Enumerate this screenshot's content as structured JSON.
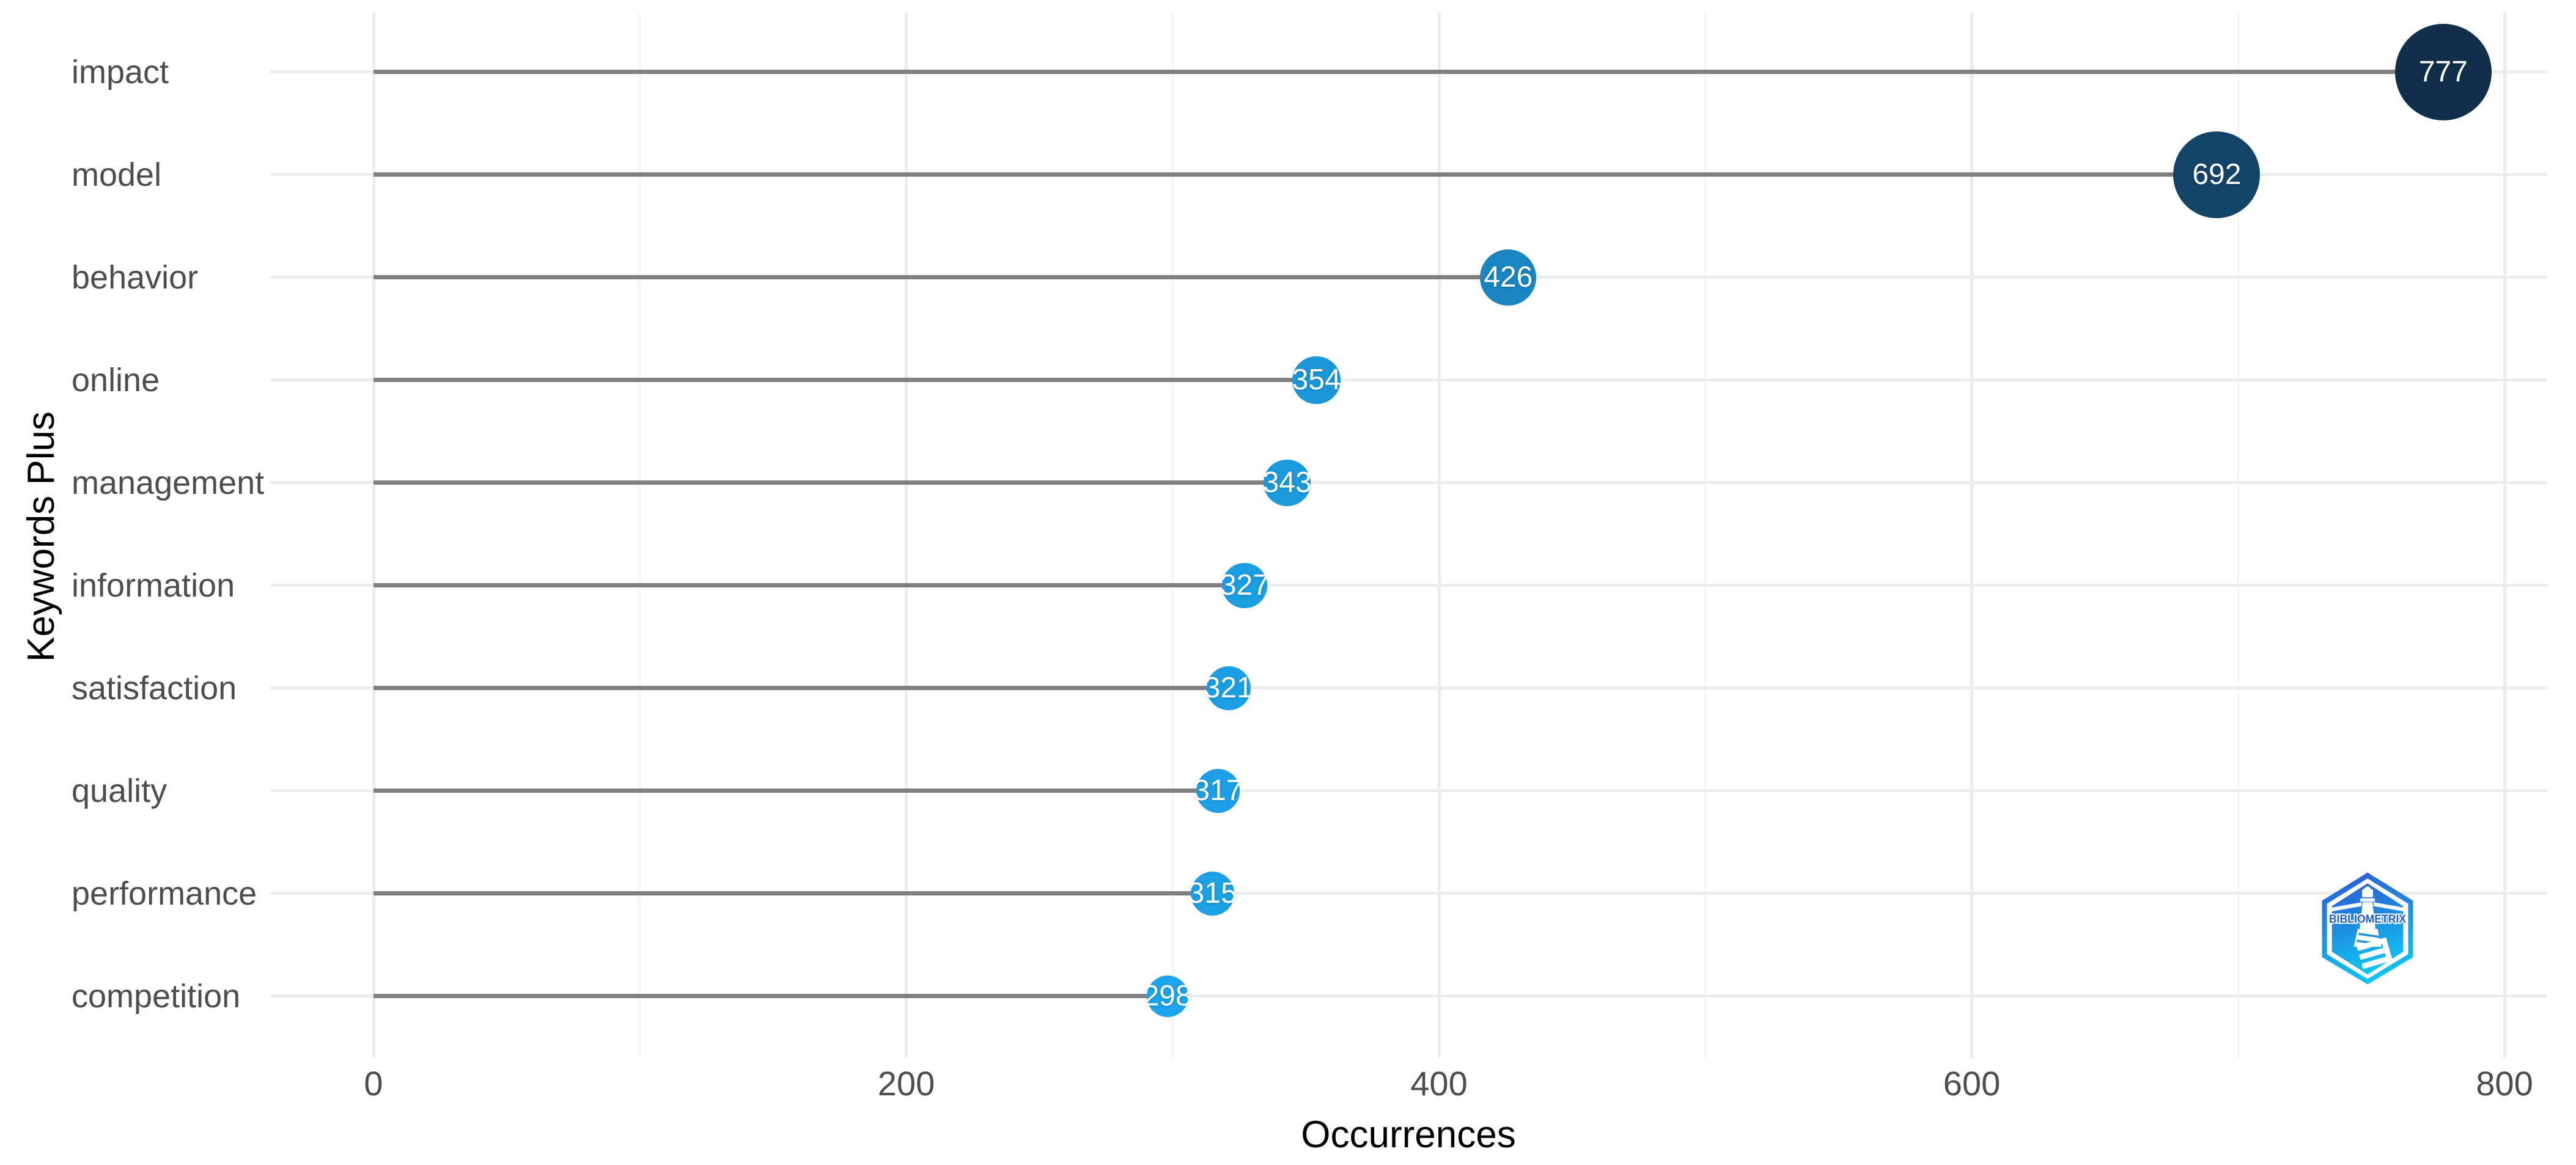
{
  "chart_data": {
    "type": "bar",
    "variant": "lollipop-dot-plot",
    "title": "",
    "xlabel": "Occurrences",
    "ylabel": "Keywords Plus",
    "categories": [
      "impact",
      "model",
      "behavior",
      "online",
      "management",
      "information",
      "satisfaction",
      "quality",
      "performance",
      "competition"
    ],
    "values": [
      777,
      692,
      426,
      354,
      343,
      327,
      321,
      317,
      315,
      298
    ],
    "x_ticks": [
      0,
      200,
      400,
      600,
      800
    ],
    "x_tick_labels": [
      "0",
      "200",
      "400",
      "600",
      "800"
    ],
    "x_minor_ticks": [
      100,
      300,
      500,
      700
    ],
    "xlim": [
      -39,
      817
    ],
    "grid": "major+minor, light grey on white",
    "legend": "none",
    "colors": {
      "dot_low_value": "#1CA4EC",
      "dot_high_value": "#112F4B",
      "stem": "#808080",
      "grid_major": "#ECECEC",
      "grid_minor": "#F4F4F4",
      "tick_label": "#4D4D4D",
      "category_label": "#4D4D4D",
      "axis_title": "#000000",
      "dot_value_label": "#FFFFFF",
      "background": "#FFFFFF",
      "logo_gradient_top": "#2B59D6",
      "logo_gradient_bottom": "#10C3F2"
    },
    "watermark": {
      "text": "BIBLIOMETRIX"
    }
  }
}
